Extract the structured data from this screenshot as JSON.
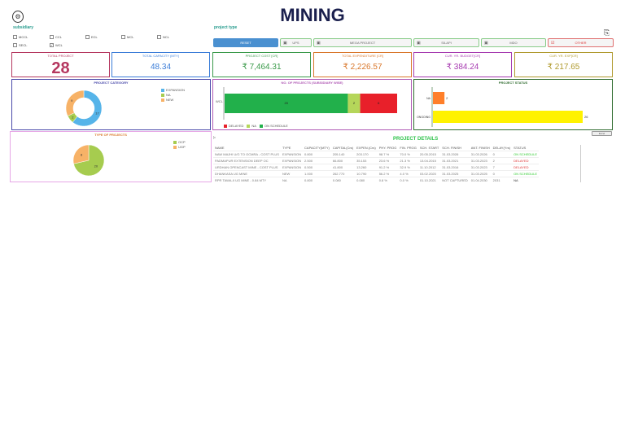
{
  "header": {
    "title": "MINING",
    "logo": "company-logo"
  },
  "subsidiary": {
    "label": "subsidiary",
    "options": [
      {
        "label": "MCCL",
        "checked": false
      },
      {
        "label": "CCL",
        "checked": false
      },
      {
        "label": "ECL",
        "checked": false
      },
      {
        "label": "MCL",
        "checked": false
      },
      {
        "label": "NCL",
        "checked": false
      },
      {
        "label": "SECL",
        "checked": false
      },
      {
        "label": "WCL",
        "checked": true
      }
    ]
  },
  "project_type": {
    "label": "project type",
    "buttons": [
      "RESET",
      "UPS",
      "MEGA PROJECT",
      "SILAPI",
      "MDO",
      "OTHER"
    ]
  },
  "kpis": [
    {
      "label": "TOTAL PROJECT",
      "value": "28",
      "color": "#b5375f"
    },
    {
      "label": "TOTAL CAPACITY (MTY)",
      "value": "48.34",
      "color": "#3b7dd8"
    },
    {
      "label": "PROJECT COST [CR]",
      "value": "₹ 7,464.31",
      "color": "#3a9a4a"
    },
    {
      "label": "TOTAL EXPENDITURE [CR]",
      "value": "₹ 2,226.57",
      "color": "#d9772b"
    },
    {
      "label": "CUR. YR. BUDGET[CR]",
      "value": "₹ 384.24",
      "color": "#a63ab0"
    },
    {
      "label": "CUR. YR. EXP[CR]",
      "value": "₹ 217.65",
      "color": "#b09a2e"
    }
  ],
  "charts": {
    "category": {
      "title": "PROJECT CATEGORY",
      "type": "pie",
      "labels": [
        "EXPANSION",
        "NA",
        "NEW"
      ],
      "values": [
        17,
        2,
        9
      ],
      "colors": [
        "#56b4e9",
        "#a6cc4f",
        "#f7b267"
      ]
    },
    "subsidiary": {
      "title": "NO. OF PROJECTS (SUBSIDIARY WISE)",
      "type": "bar",
      "categories": [
        "WCL"
      ],
      "series": [
        {
          "name": "ON SCHEDULE",
          "values": [
            20
          ],
          "color": "#22b04b"
        },
        {
          "name": "NA",
          "values": [
            2
          ],
          "color": "#b5d65a"
        },
        {
          "name": "DELAYED",
          "values": [
            6
          ],
          "color": "#e8202a"
        }
      ],
      "legend": [
        "DELAYED",
        "NA",
        "ON SCHEDULE"
      ]
    },
    "status": {
      "title": "PROJECT STATUS",
      "type": "bar",
      "categories": [
        "NA",
        "ONGOING"
      ],
      "values": [
        2,
        26
      ],
      "colors": [
        "#ff7f2a",
        "#fff200"
      ]
    },
    "types": {
      "title": "TYPE OF PROJECTS",
      "type": "pie",
      "labels": [
        "OCP",
        "UGP"
      ],
      "values": [
        20,
        8
      ],
      "colors": [
        "#a6cc4f",
        "#f7b267"
      ]
    }
  },
  "details": {
    "title": "PROJECT DETAILS",
    "export_label": "Excel",
    "columns": [
      "NAME",
      "TYPE",
      "CAPACITY(MTY)",
      "CAPITAL(Crs)",
      "EXPEN.(Crs)",
      "PHY. PROG",
      "FIN. PROG",
      "SCH. START",
      "SCH. FINISH",
      "ANT. FINISH",
      "DELAY(Yrs)",
      "STATUS"
    ],
    "rows": [
      [
        "NAW MAJHI U/G TO OCMRA - COST PLUS",
        "EXPANSION",
        "0.800",
        "205.140",
        "203.170",
        "98.7 %",
        "70.0 %",
        "20.05.2015",
        "31.03.2026",
        "31.03.2026",
        "0",
        "ON SCHEDULE"
      ],
      [
        "PADMAPUR EXTENSION DEEP  OC",
        "EXPANSION",
        "2.500",
        "66.800",
        "35.153",
        "23.6 %",
        "21.3 %",
        "13.04.2015",
        "31.03.2021",
        "31.03.2023",
        "2",
        "DELAYED"
      ],
      [
        "URDHAN OPENCAST MINE - COST PLUS",
        "EXPANSION",
        "0.500",
        "41.800",
        "13.260",
        "91.2 %",
        "32.9 %",
        "11.10.2012",
        "31.03.2016",
        "31.03.2023",
        "7",
        "DELAYED"
      ],
      [
        "DHANKASA UG MINE",
        "NEW",
        "1.000",
        "262.770",
        "10.790",
        "56.2 %",
        "4.0 %",
        "03.02.2020",
        "31.03.2025",
        "31.03.2025",
        "0",
        "ON SCHEDULE"
      ],
      [
        "RPR TAWA-II UG MINE - 0.84 MTY",
        "NA",
        "0.800",
        "0.080",
        "0.080",
        "0.8 %",
        "0.0 %",
        "01.10.2021",
        "NOT CAPTURED",
        "01.04.2030",
        "2031",
        "NA"
      ]
    ]
  }
}
